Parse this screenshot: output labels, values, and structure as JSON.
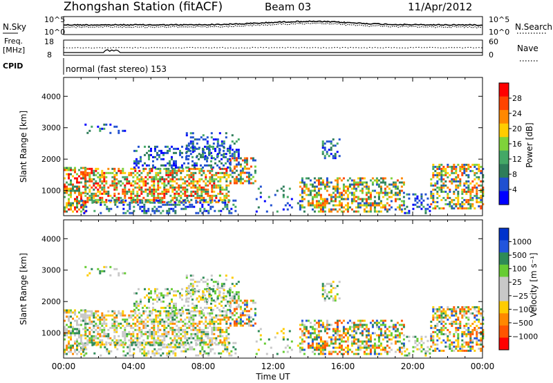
{
  "header": {
    "station": "Zhongshan Station (fitACF)",
    "beam": "Beam 03",
    "date": "11/Apr/2012"
  },
  "sky_panel": {
    "left_label": "N.Sky",
    "right_label": "N.Search",
    "left_ticks": [
      "10^5",
      "10^0"
    ],
    "right_ticks": [
      "10^5",
      "10^0"
    ]
  },
  "freq_panel": {
    "left_label_1": "Freq.",
    "left_label_2": "[MHz]",
    "right_label": "Nave",
    "left_ticks": [
      "18",
      "8"
    ],
    "right_ticks": [
      "60",
      "0"
    ]
  },
  "cpid": {
    "label": "CPID",
    "mode_text": "normal (fast stereo) 153"
  },
  "chart_data": [
    {
      "type": "heatmap",
      "name": "power",
      "ylabel": "Slant Range [km]",
      "yticks": [
        1000,
        2000,
        3000,
        4000
      ],
      "ylim": [
        200,
        4600
      ],
      "xlim": [
        0,
        24
      ],
      "colorbar": {
        "label": "Power [dB]",
        "ticks": [
          "4",
          "8",
          "12",
          "16",
          "20",
          "24",
          "28"
        ],
        "colors": [
          "#0000ff",
          "#2050d0",
          "#2e7d5a",
          "#44a866",
          "#7fd23a",
          "#ffcc00",
          "#ff8800",
          "#ff4400",
          "#ff0000"
        ]
      }
    },
    {
      "type": "heatmap",
      "name": "velocity",
      "ylabel": "Slant Range [km]",
      "yticks": [
        1000,
        2000,
        3000,
        4000
      ],
      "ylim": [
        200,
        4600
      ],
      "xlim": [
        0,
        24
      ],
      "xlabel": "Time UT",
      "xticks": [
        "00:00",
        "04:00",
        "08:00",
        "12:00",
        "16:00",
        "20:00",
        "00:00"
      ],
      "colorbar": {
        "label": "Velocity [m s⁻¹]",
        "ticks": [
          "1000",
          "500",
          "100",
          "25",
          "−25",
          "−100",
          "−500",
          "−1000"
        ],
        "colors": [
          "#0033cc",
          "#2255dd",
          "#2e8b57",
          "#66cc33",
          "#c8c8c8",
          "#c8c8c8",
          "#ffcc00",
          "#ff8800",
          "#ff5500",
          "#ff0000"
        ]
      }
    }
  ]
}
